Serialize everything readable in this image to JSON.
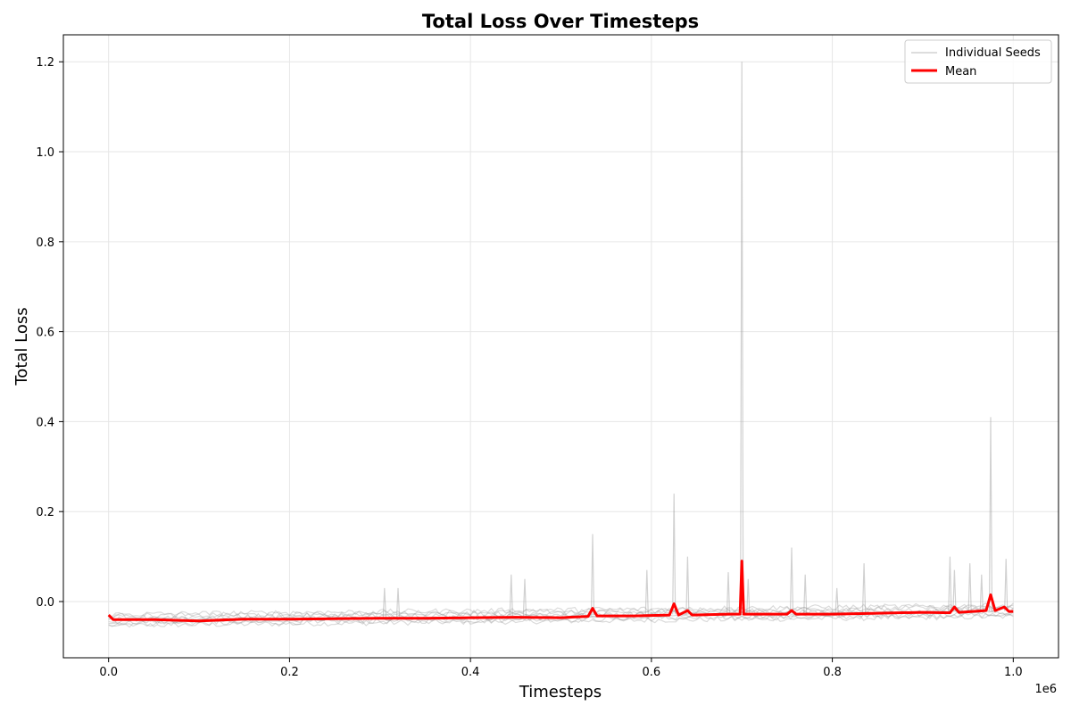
{
  "chart_data": {
    "type": "line",
    "title": "Total Loss Over Timesteps",
    "xlabel": "Timesteps",
    "ylabel": "Total Loss",
    "x_offset_label": "1e6",
    "xlim": [
      -50000,
      1050000
    ],
    "ylim": [
      -0.125,
      1.26
    ],
    "x_ticks": [
      0,
      200000,
      400000,
      600000,
      800000,
      1000000
    ],
    "x_tick_labels": [
      "0.0",
      "0.2",
      "0.4",
      "0.6",
      "0.8",
      "1.0"
    ],
    "y_ticks": [
      0.0,
      0.2,
      0.4,
      0.6,
      0.8,
      1.0,
      1.2
    ],
    "y_tick_labels": [
      "0.0",
      "0.2",
      "0.4",
      "0.6",
      "0.8",
      "1.0",
      "1.2"
    ],
    "grid": true,
    "legend_position": "top-right",
    "legend": [
      {
        "label": "Individual Seeds",
        "color": "#bbbbbb"
      },
      {
        "label": "Mean",
        "color": "#ff0000"
      }
    ],
    "seed_count": 8,
    "seeds_color": "#999999",
    "mean_color": "#ff0000",
    "seed_spikes": [
      {
        "x": 305000,
        "y": 0.03
      },
      {
        "x": 320000,
        "y": 0.03
      },
      {
        "x": 445000,
        "y": 0.06
      },
      {
        "x": 460000,
        "y": 0.05
      },
      {
        "x": 535000,
        "y": 0.15
      },
      {
        "x": 595000,
        "y": 0.07
      },
      {
        "x": 625000,
        "y": 0.24
      },
      {
        "x": 640000,
        "y": 0.1
      },
      {
        "x": 685000,
        "y": 0.065
      },
      {
        "x": 700000,
        "y": 1.2
      },
      {
        "x": 707000,
        "y": 0.05
      },
      {
        "x": 755000,
        "y": 0.12
      },
      {
        "x": 770000,
        "y": 0.06
      },
      {
        "x": 805000,
        "y": 0.03
      },
      {
        "x": 835000,
        "y": 0.085
      },
      {
        "x": 930000,
        "y": 0.1
      },
      {
        "x": 935000,
        "y": 0.07
      },
      {
        "x": 952000,
        "y": 0.085
      },
      {
        "x": 965000,
        "y": 0.06
      },
      {
        "x": 975000,
        "y": 0.41
      },
      {
        "x": 992000,
        "y": 0.095
      }
    ],
    "mean_points": [
      {
        "x": 0,
        "y": -0.03
      },
      {
        "x": 5000,
        "y": -0.04
      },
      {
        "x": 50000,
        "y": -0.04
      },
      {
        "x": 100000,
        "y": -0.043
      },
      {
        "x": 150000,
        "y": -0.039
      },
      {
        "x": 200000,
        "y": -0.039
      },
      {
        "x": 250000,
        "y": -0.038
      },
      {
        "x": 300000,
        "y": -0.037
      },
      {
        "x": 350000,
        "y": -0.037
      },
      {
        "x": 400000,
        "y": -0.036
      },
      {
        "x": 450000,
        "y": -0.035
      },
      {
        "x": 500000,
        "y": -0.036
      },
      {
        "x": 530000,
        "y": -0.033
      },
      {
        "x": 535000,
        "y": -0.015
      },
      {
        "x": 540000,
        "y": -0.032
      },
      {
        "x": 580000,
        "y": -0.032
      },
      {
        "x": 620000,
        "y": -0.03
      },
      {
        "x": 625000,
        "y": -0.005
      },
      {
        "x": 630000,
        "y": -0.03
      },
      {
        "x": 640000,
        "y": -0.02
      },
      {
        "x": 645000,
        "y": -0.03
      },
      {
        "x": 685000,
        "y": -0.028
      },
      {
        "x": 698000,
        "y": -0.028
      },
      {
        "x": 700000,
        "y": 0.09
      },
      {
        "x": 702000,
        "y": -0.028
      },
      {
        "x": 750000,
        "y": -0.028
      },
      {
        "x": 755000,
        "y": -0.02
      },
      {
        "x": 760000,
        "y": -0.028
      },
      {
        "x": 800000,
        "y": -0.028
      },
      {
        "x": 850000,
        "y": -0.026
      },
      {
        "x": 900000,
        "y": -0.024
      },
      {
        "x": 930000,
        "y": -0.025
      },
      {
        "x": 935000,
        "y": -0.012
      },
      {
        "x": 940000,
        "y": -0.024
      },
      {
        "x": 970000,
        "y": -0.02
      },
      {
        "x": 975000,
        "y": 0.015
      },
      {
        "x": 980000,
        "y": -0.02
      },
      {
        "x": 990000,
        "y": -0.012
      },
      {
        "x": 995000,
        "y": -0.022
      },
      {
        "x": 1000000,
        "y": -0.022
      }
    ]
  }
}
